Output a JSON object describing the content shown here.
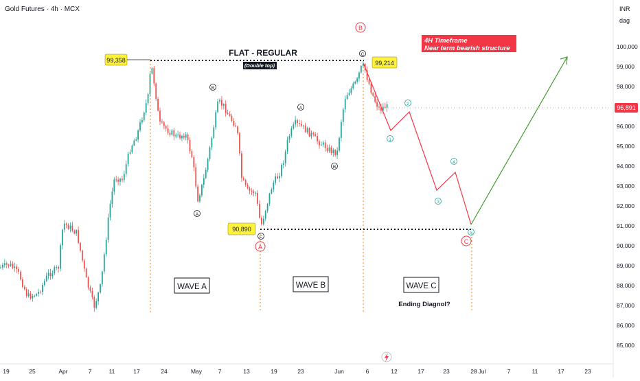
{
  "header": {
    "title": "Gold Futures · 4h · MCX"
  },
  "price_axis": {
    "currency": "INR",
    "unit_note": "dag",
    "ticks": [
      "100,000",
      "99,000",
      "98,000",
      "97,000",
      "96,000",
      "95,000",
      "94,000",
      "93,000",
      "92,000",
      "91,000",
      "90,000",
      "89,000",
      "88,000",
      "87,000",
      "86,000",
      "85,000"
    ],
    "last_price_label": "96,891",
    "colors": {
      "last_price_bg": "#f23645"
    }
  },
  "time_axis": {
    "ticks": [
      "19",
      "25",
      "Apr",
      "7",
      "11",
      "17",
      "24",
      "May",
      "7",
      "13",
      "19",
      "23",
      "Jun",
      "6",
      "12",
      "17",
      "23",
      "28",
      "Jul",
      "7",
      "11",
      "17",
      "23"
    ]
  },
  "annotations": {
    "pattern_title": "FLAT - REGULAR",
    "pattern_subtitle": "(Double top)",
    "timeframe_note_line1": "4H Timeframe",
    "timeframe_note_line2": "Near term bearish structure",
    "wave_a_label": "WAVE A",
    "wave_b_label": "WAVE B",
    "wave_c_label": "WAVE C",
    "ending_note": "Ending Diagnol?",
    "price_tags": {
      "top_left": "99,358",
      "top_right": "99,214",
      "bottom": "90,890"
    },
    "big_wave_labels": {
      "B": "B",
      "A": "A",
      "C": "C"
    },
    "sub_labels": {
      "wave_a_internal": [
        "B",
        "A"
      ],
      "wave_b_internal": [
        "A",
        "B",
        "C"
      ],
      "top_c": "C",
      "projection": [
        "1",
        "2",
        "3",
        "4",
        "5"
      ]
    },
    "colors": {
      "price_tag_bg": "#fff23a",
      "note_bg": "#f23645",
      "bear_path": "#f23645",
      "bull_path": "#3f9b2e",
      "projection_labels": "#26a69a",
      "big_label": "#f23645",
      "up_candle": "#26a69a",
      "down_candle": "#ef5350",
      "guide_line": "#f57c00"
    },
    "icons": {
      "bottom_marker": "lightning-badge-icon"
    }
  },
  "chart_data": {
    "type": "candlestick",
    "title": "Gold Futures · 4h · MCX",
    "y_unit": "INR",
    "ylim": [
      84600,
      101600
    ],
    "x_range": [
      "2025-03-18",
      "2025-07-25"
    ],
    "levels": [
      {
        "name": "double-top-line",
        "value": 99358
      },
      {
        "name": "wave-a-low-line",
        "value": 90890
      }
    ],
    "turning_points": [
      {
        "date": "2025-04-21",
        "price": 99358
      },
      {
        "date": "2025-04-29",
        "price": 92100
      },
      {
        "date": "2025-05-08",
        "price": 97500
      },
      {
        "date": "2025-05-15",
        "price": 90890
      },
      {
        "date": "2025-05-26",
        "price": 96600
      },
      {
        "date": "2025-06-02",
        "price": 95100
      },
      {
        "date": "2025-06-05",
        "price": 99214
      },
      {
        "date": "2025-06-10",
        "price": 96891
      }
    ],
    "projection": {
      "bearish_leg": [
        {
          "date": "2025-06-06",
          "price": 99100
        },
        {
          "date": "2025-06-11",
          "price": 95800
        },
        {
          "date": "2025-06-14",
          "price": 96700
        },
        {
          "date": "2025-06-20",
          "price": 92800
        },
        {
          "date": "2025-06-24",
          "price": 93700
        },
        {
          "date": "2025-06-28",
          "price": 91000
        }
      ],
      "bullish_leg": [
        {
          "date": "2025-06-28",
          "price": 91000
        },
        {
          "date": "2025-07-22",
          "price": 99500
        }
      ]
    },
    "legend": "none",
    "grid": false
  }
}
